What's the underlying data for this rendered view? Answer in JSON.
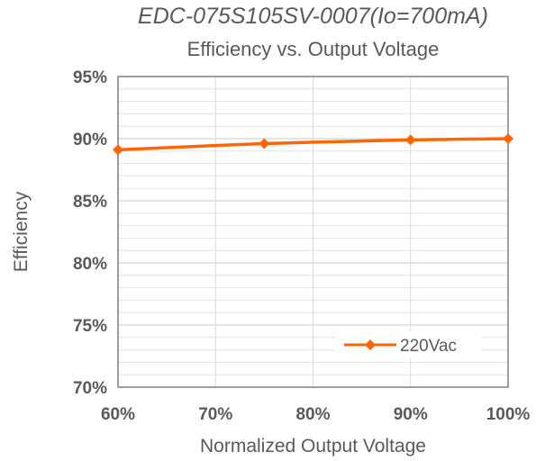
{
  "chart_data": {
    "type": "line",
    "title": "EDC-075S105SV-0007(Io=700mA)",
    "subtitle": "Efficiency vs. Output Voltage",
    "xlabel": "Normalized Output Voltage",
    "ylabel": "Efficiency",
    "x": [
      60,
      75,
      90,
      100
    ],
    "x_ticks": [
      "60%",
      "70%",
      "80%",
      "90%",
      "100%"
    ],
    "x_tick_values": [
      60,
      70,
      80,
      90,
      100
    ],
    "xlim": [
      60,
      100
    ],
    "y_ticks": [
      "70%",
      "75%",
      "80%",
      "85%",
      "90%",
      "95%"
    ],
    "y_tick_values": [
      70,
      75,
      80,
      85,
      90,
      95
    ],
    "ylim": [
      70,
      95
    ],
    "grid": true,
    "legend_position": "bottom-right",
    "series": [
      {
        "name": "220Vac",
        "color": "#FF6600",
        "values": [
          89.1,
          89.6,
          89.9,
          90.0
        ]
      }
    ]
  }
}
